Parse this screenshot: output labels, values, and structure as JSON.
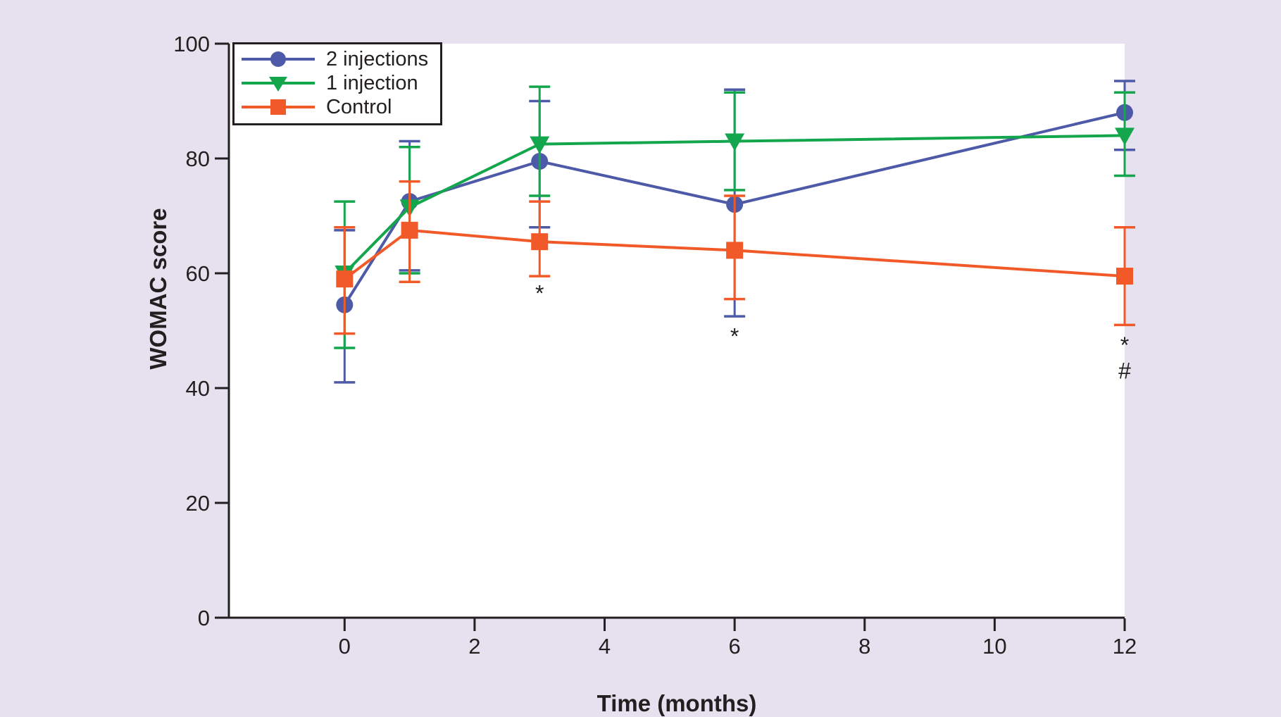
{
  "colors": {
    "background": "#E5E1EF",
    "plot_background": "#FFFFFF",
    "axis": "#231F20",
    "series_blue": "#4D5AA8",
    "series_green": "#14A64D",
    "series_orange": "#F15A28"
  },
  "chart_data": {
    "type": "line",
    "title": "",
    "xlabel": "Time (months)",
    "ylabel": "WOMAC score",
    "xlim": [
      -1.78,
      12
    ],
    "ylim": [
      0,
      100
    ],
    "x_ticks": [
      0,
      2,
      4,
      6,
      8,
      10,
      12
    ],
    "y_ticks": [
      0,
      20,
      40,
      60,
      80,
      100
    ],
    "grid": false,
    "legend_position": "top-left-inside",
    "x": [
      0,
      1,
      3,
      6,
      12
    ],
    "series": [
      {
        "name": "2 injections",
        "marker": "circle",
        "color": "#4D5AA8",
        "values": [
          54.5,
          72.5,
          79.5,
          72,
          88
        ],
        "err_low": [
          41,
          60.5,
          68,
          52.5,
          81.5
        ],
        "err_high": [
          67.5,
          83,
          90,
          92,
          93.5
        ]
      },
      {
        "name": "1 injection",
        "marker": "triangle-down",
        "color": "#14A64D",
        "values": [
          60,
          71.5,
          82.5,
          83,
          84
        ],
        "err_low": [
          47,
          60,
          73.5,
          74.5,
          77
        ],
        "err_high": [
          72.5,
          82,
          92.5,
          91.5,
          91.5
        ]
      },
      {
        "name": "Control",
        "marker": "square",
        "color": "#F15A28",
        "values": [
          59,
          67.5,
          65.5,
          64,
          59.5
        ],
        "err_low": [
          49.5,
          58.5,
          59.5,
          55.5,
          51
        ],
        "err_high": [
          68,
          76,
          72.5,
          73.5,
          68
        ]
      }
    ],
    "annotations": [
      {
        "text": "*",
        "x": 3,
        "y": 56.5
      },
      {
        "text": "*",
        "x": 6,
        "y": 49
      },
      {
        "text": "*",
        "x": 12,
        "y": 47.5
      },
      {
        "text": "#",
        "x": 12,
        "y": 43
      }
    ]
  }
}
